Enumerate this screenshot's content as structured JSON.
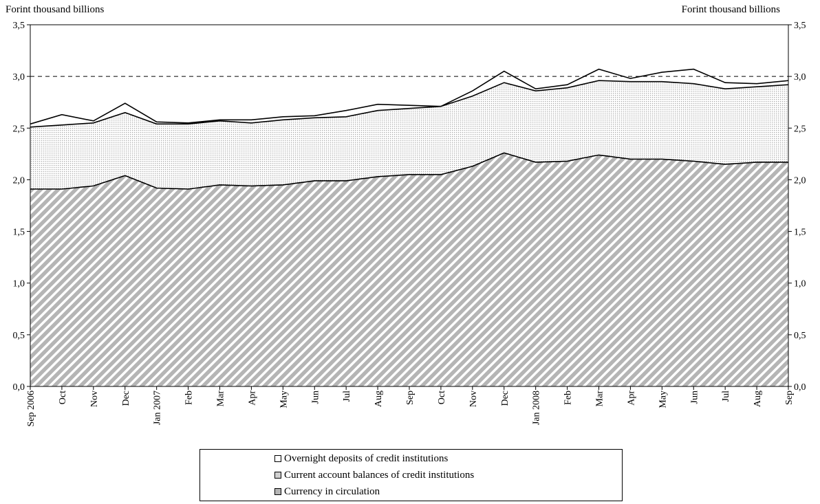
{
  "chart_data": {
    "type": "area",
    "stacked": true,
    "y_unit_left": "Forint thousand billions",
    "y_unit_right": "Forint thousand billions",
    "ylim": [
      0,
      3.5
    ],
    "yticks": [
      "0,0",
      "0,5",
      "1,0",
      "1,5",
      "2,0",
      "2,5",
      "3,0",
      "3,5"
    ],
    "ytick_values": [
      0,
      0.5,
      1.0,
      1.5,
      2.0,
      2.5,
      3.0,
      3.5
    ],
    "reference_line": 3.0,
    "categories": [
      "Sep 2006",
      "Oct",
      "Nov",
      "Dec",
      "Jan 2007",
      "Feb",
      "Mar",
      "Apr",
      "May",
      "Jun",
      "Jul",
      "Aug",
      "Sep",
      "Oct",
      "Nov",
      "Dec",
      "Jan 2008",
      "Feb",
      "Mar",
      "Apr",
      "May",
      "Jun",
      "Jul",
      "Aug",
      "Sep"
    ],
    "series": [
      {
        "name": "Currency in circulation",
        "pattern": "diagonal-hatch",
        "color": "#b5b5b5",
        "values": [
          1.91,
          1.91,
          1.94,
          2.04,
          1.92,
          1.91,
          1.95,
          1.94,
          1.95,
          1.99,
          1.99,
          2.03,
          2.05,
          2.05,
          2.13,
          2.26,
          2.17,
          2.18,
          2.24,
          2.2,
          2.2,
          2.18,
          2.15,
          2.17,
          2.17
        ]
      },
      {
        "name": "Current account balances of credit institutions",
        "pattern": "dots",
        "color": "#d0d0d0",
        "values": [
          0.6,
          0.62,
          0.61,
          0.61,
          0.62,
          0.63,
          0.62,
          0.61,
          0.63,
          0.61,
          0.62,
          0.64,
          0.64,
          0.66,
          0.68,
          0.68,
          0.69,
          0.71,
          0.72,
          0.75,
          0.75,
          0.75,
          0.73,
          0.73,
          0.75
        ]
      },
      {
        "name": "Overnight deposits of credit institutions",
        "pattern": "none",
        "color": "#ffffff",
        "values": [
          0.03,
          0.1,
          0.02,
          0.09,
          0.02,
          0.01,
          0.01,
          0.03,
          0.03,
          0.02,
          0.06,
          0.06,
          0.03,
          0.0,
          0.05,
          0.11,
          0.02,
          0.03,
          0.11,
          0.03,
          0.09,
          0.14,
          0.06,
          0.03,
          0.04
        ]
      }
    ],
    "legend_order": [
      "Overnight deposits of credit institutions",
      "Current account balances of credit institutions",
      "Currency in circulation"
    ],
    "legend_position": "bottom"
  }
}
